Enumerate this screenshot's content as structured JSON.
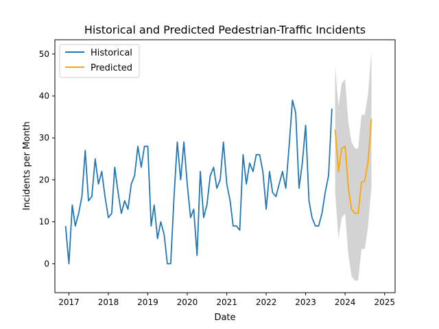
{
  "chart_data": {
    "type": "line",
    "title": "Historical and Predicted Pedestrian-Traffic Incidents",
    "xlabel": "Date",
    "ylabel": "Incidents per Month",
    "xlim": [
      "2016-08-24",
      "2025-04-08"
    ],
    "ylim": [
      -6.9,
      53.4
    ],
    "x_ticks": [
      "2017",
      "2018",
      "2019",
      "2020",
      "2021",
      "2022",
      "2023",
      "2024",
      "2025"
    ],
    "y_ticks": [
      "0",
      "10",
      "20",
      "30",
      "40",
      "50"
    ],
    "grid": false,
    "legend": {
      "placement": "top-left"
    },
    "series": [
      {
        "name": "Historical",
        "color": "#1f77b4",
        "x": [
          "2016-12",
          "2017-01",
          "2017-02",
          "2017-03",
          "2017-04",
          "2017-05",
          "2017-06",
          "2017-07",
          "2017-08",
          "2017-09",
          "2017-10",
          "2017-11",
          "2017-12",
          "2018-01",
          "2018-02",
          "2018-03",
          "2018-04",
          "2018-05",
          "2018-06",
          "2018-07",
          "2018-08",
          "2018-09",
          "2018-10",
          "2018-11",
          "2018-12",
          "2019-01",
          "2019-02",
          "2019-03",
          "2019-04",
          "2019-05",
          "2019-06",
          "2019-07",
          "2019-08",
          "2019-09",
          "2019-10",
          "2019-11",
          "2019-12",
          "2020-01",
          "2020-02",
          "2020-03",
          "2020-04",
          "2020-05",
          "2020-06",
          "2020-07",
          "2020-08",
          "2020-09",
          "2020-10",
          "2020-11",
          "2020-12",
          "2021-01",
          "2021-02",
          "2021-03",
          "2021-04",
          "2021-05",
          "2021-06",
          "2021-07",
          "2021-08",
          "2021-09",
          "2021-10",
          "2021-11",
          "2021-12",
          "2022-01",
          "2022-02",
          "2022-03",
          "2022-04",
          "2022-05",
          "2022-06",
          "2022-07",
          "2022-08",
          "2022-09",
          "2022-10",
          "2022-11",
          "2022-12",
          "2023-01",
          "2023-02",
          "2023-03",
          "2023-04",
          "2023-05",
          "2023-06",
          "2023-07",
          "2023-08",
          "2023-09"
        ],
        "values": [
          9,
          0,
          14,
          9,
          12,
          16,
          27,
          15,
          16,
          25,
          19,
          22,
          16,
          11,
          12,
          23,
          17,
          12,
          15,
          13,
          19,
          21,
          28,
          23,
          28,
          28,
          9,
          14,
          6,
          10,
          7,
          0,
          0,
          16,
          29,
          20,
          29,
          19,
          11,
          13,
          2,
          22,
          11,
          14,
          21,
          23,
          18,
          20,
          29,
          19,
          15,
          9,
          9,
          8,
          26,
          19,
          24,
          22,
          26,
          26,
          22,
          13,
          22,
          17,
          16,
          19,
          22,
          18,
          28,
          39,
          36,
          18,
          24,
          33,
          15,
          11,
          9,
          9,
          12,
          17,
          21,
          37
        ]
      },
      {
        "name": "Predicted",
        "color": "#ffa500",
        "x": [
          "2023-10",
          "2023-11",
          "2023-12",
          "2024-01",
          "2024-02",
          "2024-03",
          "2024-04",
          "2024-05",
          "2024-06",
          "2024-07",
          "2024-08",
          "2024-09"
        ],
        "values": [
          32,
          22,
          27.5,
          28,
          18,
          13,
          12,
          12,
          19.5,
          19.7,
          24.5,
          34.5
        ]
      }
    ],
    "confidence_band": {
      "color": "#d3d3d3",
      "x": [
        "2023-10",
        "2023-11",
        "2023-12",
        "2024-01",
        "2024-02",
        "2024-03",
        "2024-04",
        "2024-05",
        "2024-06",
        "2024-07",
        "2024-08",
        "2024-09"
      ],
      "lower": [
        17,
        6,
        11,
        12,
        2,
        -3,
        -4,
        -4,
        3.5,
        3.5,
        9,
        18.5
      ],
      "upper": [
        47,
        37.5,
        43,
        44,
        33.5,
        29,
        27.5,
        27.5,
        35.5,
        35.5,
        40.5,
        50.5
      ]
    }
  }
}
